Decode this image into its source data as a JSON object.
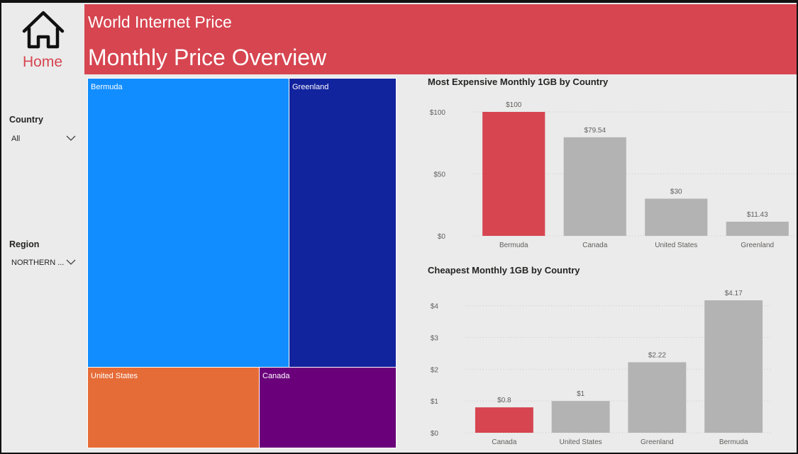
{
  "nav": {
    "home_label": "Home",
    "home_icon": "home-icon"
  },
  "header": {
    "report_title": "World Internet Price",
    "page_title": "Monthly Price Overview",
    "background": "#d64550"
  },
  "filters": {
    "country": {
      "title": "Country",
      "value": "All"
    },
    "region": {
      "title": "Region",
      "value": "NORTHERN ..."
    }
  },
  "treemap": {
    "tiles": [
      {
        "label": "Bermuda",
        "color": "#118dff"
      },
      {
        "label": "Greenland",
        "color": "#12239e"
      },
      {
        "label": "United States",
        "color": "#e66c37"
      },
      {
        "label": "Canada",
        "color": "#6b007b"
      }
    ]
  },
  "chart_data": [
    {
      "type": "bar",
      "title": "Most Expensive Monthly 1GB by Country",
      "categories": [
        "Bermuda",
        "Canada",
        "United States",
        "Greenland"
      ],
      "values": [
        100,
        79.54,
        30,
        11.43
      ],
      "data_labels": [
        "$100",
        "$79.54",
        "$30",
        "$11.43"
      ],
      "ylim": [
        0,
        100
      ],
      "yticks": [
        0,
        50,
        100
      ],
      "ytick_labels": [
        "$0",
        "$50",
        "$100"
      ],
      "highlight_color": "#d64550",
      "bar_color": "#b3b3b3",
      "highlight_index": 0,
      "grid": true
    },
    {
      "type": "bar",
      "title": "Cheapest Monthly 1GB by Country",
      "categories": [
        "Canada",
        "United States",
        "Greenland",
        "Bermuda"
      ],
      "values": [
        0.8,
        1,
        2.22,
        4.17
      ],
      "data_labels": [
        "$0.8",
        "$1",
        "$2.22",
        "$4.17"
      ],
      "ylim": [
        0,
        4.17
      ],
      "yticks": [
        0,
        1,
        2,
        3,
        4
      ],
      "ytick_labels": [
        "$0",
        "$1",
        "$2",
        "$3",
        "$4"
      ],
      "highlight_color": "#d64550",
      "bar_color": "#b3b3b3",
      "highlight_index": 0,
      "grid": true
    }
  ]
}
